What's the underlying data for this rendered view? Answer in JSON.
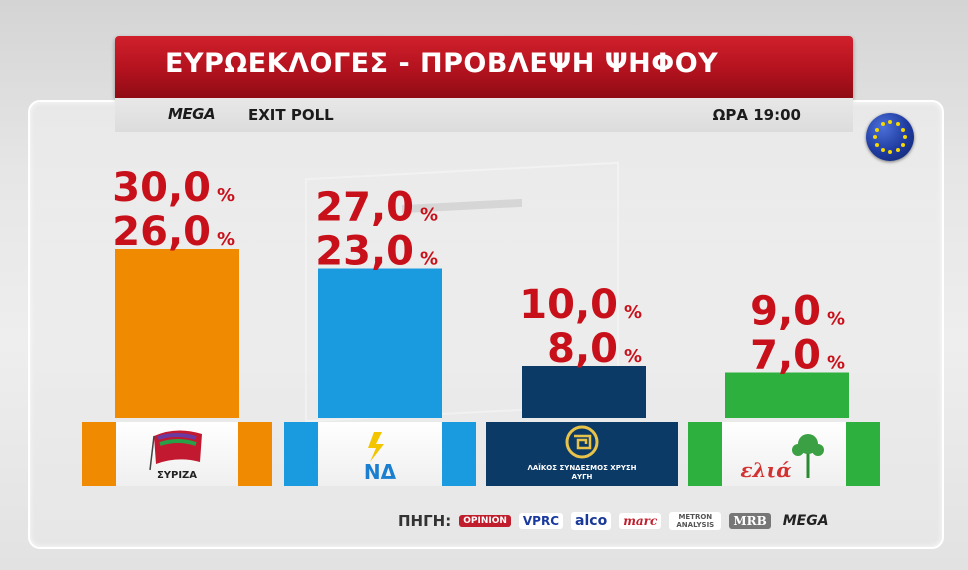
{
  "header": {
    "title": "ΕΥΡΩΕΚΛΟΓΕΣ - ΠΡΟΒΛΕΨΗ ΨΗΦΟΥ",
    "channel_logo": "MEGA",
    "subtitle": "EXIT POLL",
    "time": "ΩΡΑ 19:00"
  },
  "chart_data": {
    "type": "bar",
    "categories": [
      "ΣΥΡΙΖΑ",
      "ΝΔ",
      "ΧΡΥΣΗ ΑΥΓΗ",
      "ελιά"
    ],
    "series": [
      {
        "values": [
          26.0,
          23.0,
          8.0,
          7.0
        ]
      },
      {
        "values": [
          30.0,
          27.0,
          10.0,
          9.0
        ]
      }
    ],
    "value_labels": {
      "upper": [
        "30,0",
        "27,0",
        "10,0",
        "9,0"
      ],
      "lower": [
        "26,0",
        "23,0",
        "8,0",
        "7,0"
      ],
      "unit": "%"
    },
    "colors": [
      "#f08a00",
      "#1a9be0",
      "#0c3a66",
      "#2eb03e"
    ],
    "ylim": [
      0,
      30
    ],
    "grid": false
  },
  "parties": [
    {
      "name": "ΣΥΡΙΖΑ",
      "label": "ΣΥΡΙΖΑ",
      "logo_icon": "syriza-flag-icon",
      "color": "#f08a00"
    },
    {
      "name": "ΝΔ",
      "label": "ΝΔ",
      "logo_icon": "nd-torch-icon",
      "color": "#1a9be0"
    },
    {
      "name": "ΧΡΥΣΗ ΑΥΓΗ",
      "label": "ΛΑΪΚΟΣ ΣΥΝΔΕΣΜΟΣ ΧΡΥΣΗ ΑΥΓΗ",
      "logo_icon": "meander-emblem-icon",
      "color": "#0c3a66"
    },
    {
      "name": "ελιά",
      "label": "ελιά",
      "logo_icon": "olive-tree-icon",
      "color": "#2eb03e"
    }
  ],
  "source": {
    "label": "ΠΗΓΗ:",
    "pollsters": [
      "OPINION",
      "VPRC",
      "alco",
      "marc",
      "METRON ANALYSIS",
      "MRB",
      "MEGA"
    ]
  }
}
